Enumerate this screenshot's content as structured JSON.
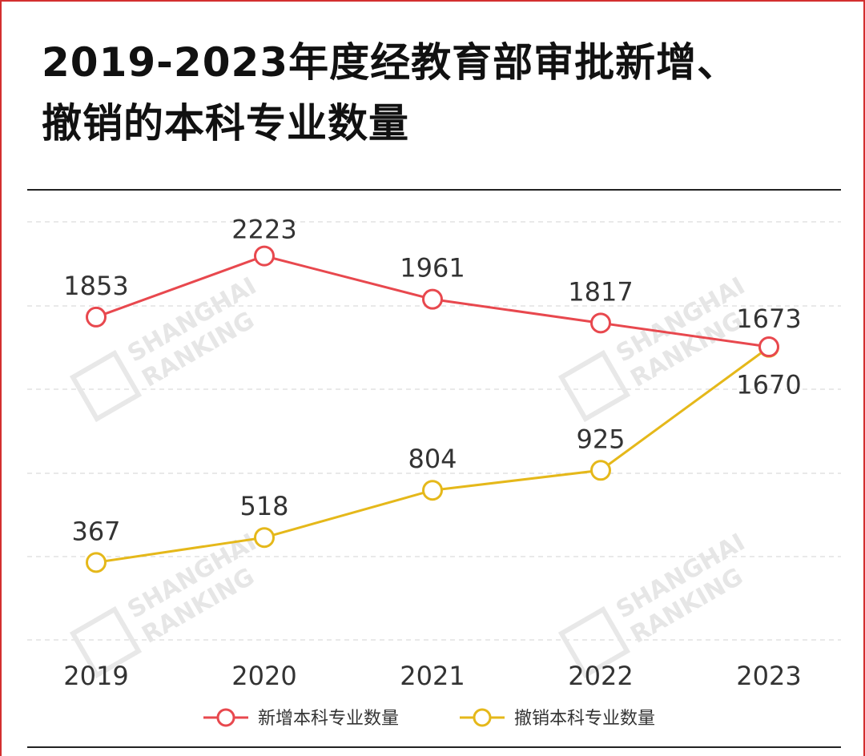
{
  "title": {
    "line1": "2019-2023年度经教育部审批新增、",
    "line2": "撤销的本科专业数量"
  },
  "colors": {
    "new_series": "#e8484e",
    "revoked_series": "#e5b81a",
    "grid": "#e2e2e2",
    "text": "#333333"
  },
  "chart_data": {
    "type": "line",
    "title": "2019-2023年度经教育部审批新增、撤销的本科专业数量",
    "categories": [
      "2019",
      "2020",
      "2021",
      "2022",
      "2023"
    ],
    "series": [
      {
        "name": "新增本科专业数量",
        "values": [
          1853,
          2223,
          1961,
          1817,
          1673
        ]
      },
      {
        "name": "撤销本科专业数量",
        "values": [
          367,
          518,
          804,
          925,
          1670
        ]
      }
    ],
    "xlabel": "",
    "ylabel": "",
    "ylim": [
      0,
      2600
    ],
    "grid": true,
    "legend_position": "bottom-center"
  }
}
